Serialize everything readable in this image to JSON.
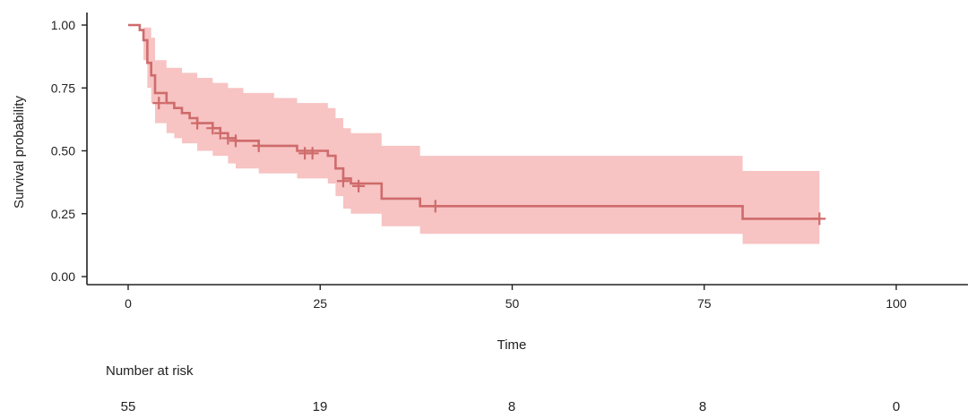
{
  "chart_data": {
    "type": "line",
    "subtype": "kaplan-meier",
    "xlabel": "Time",
    "ylabel": "Survival probability",
    "xlim": [
      0,
      100
    ],
    "ylim": [
      0,
      1
    ],
    "x_ticks": [
      0,
      25,
      50,
      75,
      100
    ],
    "y_ticks": [
      0.0,
      0.25,
      0.5,
      0.75,
      1.0
    ],
    "y_tick_labels": [
      "0.00",
      "0.25",
      "0.50",
      "0.75",
      "1.00"
    ],
    "grid": false,
    "colors": {
      "line": "#cf6b6b",
      "ci_fill": "#f7c3c3",
      "censor": "#cf6b6b"
    },
    "series": [
      {
        "steps": [
          [
            0,
            1.0
          ],
          [
            1.5,
            0.98
          ],
          [
            2,
            0.94
          ],
          [
            2.5,
            0.85
          ],
          [
            3,
            0.8
          ],
          [
            3.5,
            0.73
          ],
          [
            5,
            0.69
          ],
          [
            6,
            0.67
          ],
          [
            7,
            0.65
          ],
          [
            8,
            0.63
          ],
          [
            9,
            0.61
          ],
          [
            11,
            0.59
          ],
          [
            12,
            0.57
          ],
          [
            13,
            0.55
          ],
          [
            14,
            0.54
          ],
          [
            17,
            0.52
          ],
          [
            22,
            0.5
          ],
          [
            26,
            0.48
          ],
          [
            27,
            0.43
          ],
          [
            28,
            0.39
          ],
          [
            29,
            0.37
          ],
          [
            33,
            0.31
          ],
          [
            38,
            0.28
          ],
          [
            80,
            0.23
          ],
          [
            90,
            0.23
          ]
        ],
        "ci_upper": [
          [
            0,
            1.0
          ],
          [
            2,
            0.99
          ],
          [
            3,
            0.95
          ],
          [
            3.5,
            0.86
          ],
          [
            5,
            0.83
          ],
          [
            7,
            0.81
          ],
          [
            9,
            0.79
          ],
          [
            11,
            0.77
          ],
          [
            13,
            0.75
          ],
          [
            15,
            0.73
          ],
          [
            19,
            0.71
          ],
          [
            22,
            0.69
          ],
          [
            26,
            0.67
          ],
          [
            27,
            0.63
          ],
          [
            28,
            0.59
          ],
          [
            29,
            0.57
          ],
          [
            33,
            0.52
          ],
          [
            38,
            0.48
          ],
          [
            80,
            0.42
          ],
          [
            90,
            0.42
          ]
        ],
        "ci_lower": [
          [
            0,
            1.0
          ],
          [
            2,
            0.86
          ],
          [
            2.5,
            0.75
          ],
          [
            3,
            0.69
          ],
          [
            3.5,
            0.61
          ],
          [
            5,
            0.57
          ],
          [
            6,
            0.55
          ],
          [
            7,
            0.53
          ],
          [
            9,
            0.5
          ],
          [
            11,
            0.48
          ],
          [
            13,
            0.45
          ],
          [
            14,
            0.43
          ],
          [
            17,
            0.41
          ],
          [
            22,
            0.39
          ],
          [
            26,
            0.37
          ],
          [
            27,
            0.32
          ],
          [
            28,
            0.27
          ],
          [
            29,
            0.25
          ],
          [
            33,
            0.2
          ],
          [
            38,
            0.17
          ],
          [
            80,
            0.13
          ],
          [
            90,
            0.13
          ]
        ],
        "censored": [
          [
            4,
            0.69
          ],
          [
            9,
            0.61
          ],
          [
            11,
            0.59
          ],
          [
            12,
            0.57
          ],
          [
            13,
            0.55
          ],
          [
            14,
            0.54
          ],
          [
            17,
            0.52
          ],
          [
            23,
            0.49
          ],
          [
            24,
            0.49
          ],
          [
            28,
            0.38
          ],
          [
            30,
            0.36
          ],
          [
            40,
            0.28
          ],
          [
            90,
            0.23
          ]
        ]
      }
    ],
    "risk_table": {
      "title": "Number at risk",
      "times": [
        0,
        25,
        50,
        75,
        100
      ],
      "values": [
        "55",
        "19",
        "8",
        "8",
        "0"
      ]
    }
  }
}
